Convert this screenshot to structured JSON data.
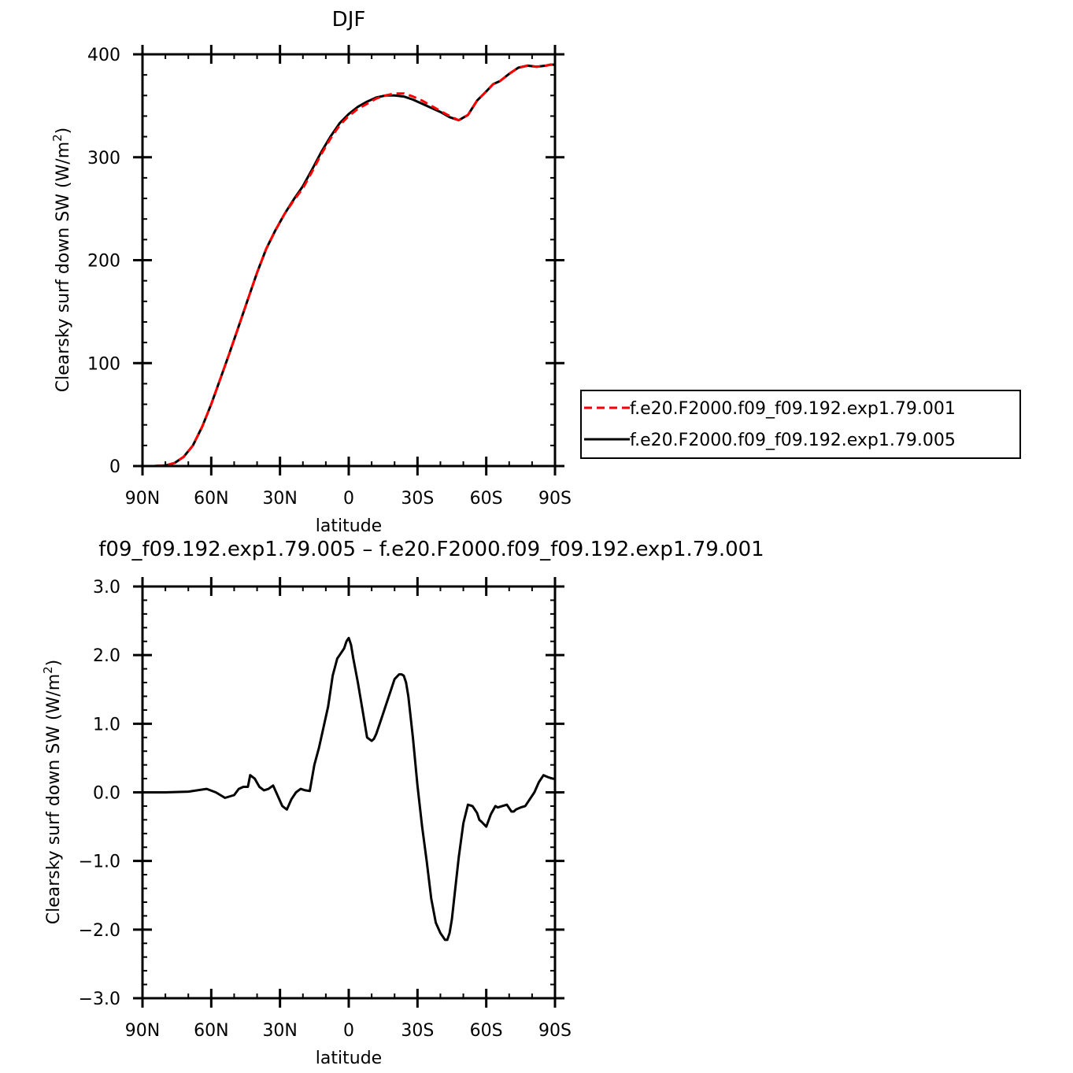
{
  "chart_data": [
    {
      "type": "line",
      "title": "DJF",
      "xlabel": "latitude",
      "ylabel": "Clearsky surf down SW (W/m",
      "ylabel_sup": "2",
      "ylabel_close": ")",
      "xlim": [
        90,
        -90
      ],
      "ylim": [
        0,
        400
      ],
      "xticks": [
        {
          "value": 90,
          "label": "90N"
        },
        {
          "value": 60,
          "label": "60N"
        },
        {
          "value": 30,
          "label": "30N"
        },
        {
          "value": 0,
          "label": "0"
        },
        {
          "value": -30,
          "label": "30S"
        },
        {
          "value": -60,
          "label": "60S"
        },
        {
          "value": -90,
          "label": "90S"
        }
      ],
      "yticks": [
        {
          "value": 0,
          "label": "0"
        },
        {
          "value": 100,
          "label": "100"
        },
        {
          "value": 200,
          "label": "200"
        },
        {
          "value": 300,
          "label": "300"
        },
        {
          "value": 400,
          "label": "400"
        }
      ],
      "legend_position": "right",
      "series": [
        {
          "name": "f.e20.F2000.f09_f09.192.exp1.79.001",
          "color": "#ff0000",
          "dash": "dashed",
          "x": [
            90,
            85,
            80,
            76,
            72,
            68,
            64,
            60,
            56,
            52,
            48,
            44,
            40,
            36,
            32,
            28,
            24,
            20,
            16,
            12,
            8,
            4,
            0,
            -4,
            -8,
            -12,
            -16,
            -20,
            -24,
            -28,
            -32,
            -36,
            -40,
            -44,
            -48,
            -52,
            -56,
            -60,
            -63,
            -66,
            -70,
            -74,
            -78,
            -82,
            -86,
            -88,
            -90
          ],
          "y": [
            0,
            0,
            0.5,
            3,
            9,
            20,
            38,
            60,
            85,
            110,
            136,
            162,
            188,
            211,
            229,
            245,
            258,
            270,
            286,
            303,
            318,
            331,
            340,
            347,
            352,
            357,
            360,
            362,
            362,
            359,
            355,
            350,
            345,
            340,
            336,
            341,
            355,
            364,
            371,
            374,
            381,
            387,
            389,
            388,
            389,
            390,
            390
          ]
        },
        {
          "name": "f.e20.F2000.f09_f09.192.exp1.79.005",
          "color": "#000000",
          "dash": "solid",
          "x": [
            90,
            85,
            80,
            76,
            72,
            68,
            64,
            60,
            56,
            52,
            48,
            44,
            40,
            36,
            32,
            28,
            24,
            20,
            16,
            12,
            8,
            4,
            0,
            -4,
            -8,
            -12,
            -16,
            -20,
            -24,
            -28,
            -32,
            -36,
            -40,
            -44,
            -48,
            -52,
            -56,
            -60,
            -63,
            -66,
            -70,
            -74,
            -78,
            -82,
            -86,
            -88,
            -90
          ],
          "y": [
            0,
            0,
            0.5,
            3,
            9,
            20,
            38,
            60,
            85,
            110,
            136,
            162,
            188,
            211,
            229,
            245,
            259,
            272,
            288,
            305,
            320,
            333,
            342,
            349,
            354,
            358,
            360,
            360,
            359,
            356,
            352,
            348,
            344,
            339,
            336,
            341,
            355,
            364,
            371,
            374,
            381,
            387,
            389,
            388,
            389,
            390,
            390
          ]
        }
      ]
    },
    {
      "type": "line",
      "title": "f09_f09.192.exp1.79.005 – f.e20.F2000.f09_f09.192.exp1.79.001",
      "xlabel": "latitude",
      "ylabel": "Clearsky surf down SW (W/m",
      "ylabel_sup": "2",
      "ylabel_close": ")",
      "xlim": [
        90,
        -90
      ],
      "ylim": [
        -3,
        3
      ],
      "xticks": [
        {
          "value": 90,
          "label": "90N"
        },
        {
          "value": 60,
          "label": "60N"
        },
        {
          "value": 30,
          "label": "30N"
        },
        {
          "value": 0,
          "label": "0"
        },
        {
          "value": -30,
          "label": "30S"
        },
        {
          "value": -60,
          "label": "60S"
        },
        {
          "value": -90,
          "label": "90S"
        }
      ],
      "yticks": [
        {
          "value": -3,
          "label": "−3.0"
        },
        {
          "value": -2,
          "label": "−2.0"
        },
        {
          "value": -1,
          "label": "−1.0"
        },
        {
          "value": 0,
          "label": "0.0"
        },
        {
          "value": 1,
          "label": "1.0"
        },
        {
          "value": 2,
          "label": "2.0"
        },
        {
          "value": 3,
          "label": "3.0"
        }
      ],
      "series": [
        {
          "color": "#000000",
          "dash": "solid",
          "x": [
            90,
            80,
            70,
            62,
            58,
            54,
            50,
            48,
            46,
            44,
            43,
            41,
            39,
            37,
            35,
            33,
            31,
            29,
            27,
            25,
            23,
            21,
            19,
            17,
            15,
            13,
            11,
            9,
            7,
            5,
            4,
            2,
            1,
            0,
            -1,
            -2,
            -4,
            -6,
            -8,
            -10,
            -11,
            -12,
            -14,
            -16,
            -18,
            -20,
            -22,
            -23,
            -24,
            -25,
            -26,
            -28,
            -30,
            -32,
            -34,
            -36,
            -38,
            -40,
            -42,
            -43,
            -44,
            -45,
            -46,
            -48,
            -50,
            -52,
            -54,
            -56,
            -57,
            -58,
            -60,
            -62,
            -64,
            -65,
            -67,
            -69,
            -71,
            -72,
            -73,
            -75,
            -77,
            -79,
            -81,
            -83,
            -85,
            -87,
            -89,
            -90
          ],
          "y": [
            0,
            0,
            0.01,
            0.05,
            0.0,
            -0.08,
            -0.04,
            0.05,
            0.08,
            0.08,
            0.25,
            0.2,
            0.08,
            0.03,
            0.05,
            0.1,
            -0.05,
            -0.2,
            -0.25,
            -0.1,
            0.0,
            0.05,
            0.03,
            0.02,
            0.4,
            0.65,
            0.95,
            1.25,
            1.7,
            1.95,
            2.0,
            2.1,
            2.2,
            2.25,
            2.15,
            1.95,
            1.6,
            1.2,
            0.8,
            0.75,
            0.78,
            0.85,
            1.05,
            1.25,
            1.45,
            1.65,
            1.72,
            1.72,
            1.7,
            1.6,
            1.4,
            0.8,
            0.1,
            -0.5,
            -1.0,
            -1.55,
            -1.9,
            -2.05,
            -2.15,
            -2.15,
            -2.05,
            -1.85,
            -1.55,
            -0.95,
            -0.45,
            -0.18,
            -0.2,
            -0.3,
            -0.4,
            -0.43,
            -0.5,
            -0.32,
            -0.2,
            -0.22,
            -0.2,
            -0.18,
            -0.28,
            -0.28,
            -0.25,
            -0.22,
            -0.2,
            -0.1,
            0.0,
            0.15,
            0.25,
            0.22,
            0.2,
            0.2
          ]
        }
      ]
    }
  ]
}
